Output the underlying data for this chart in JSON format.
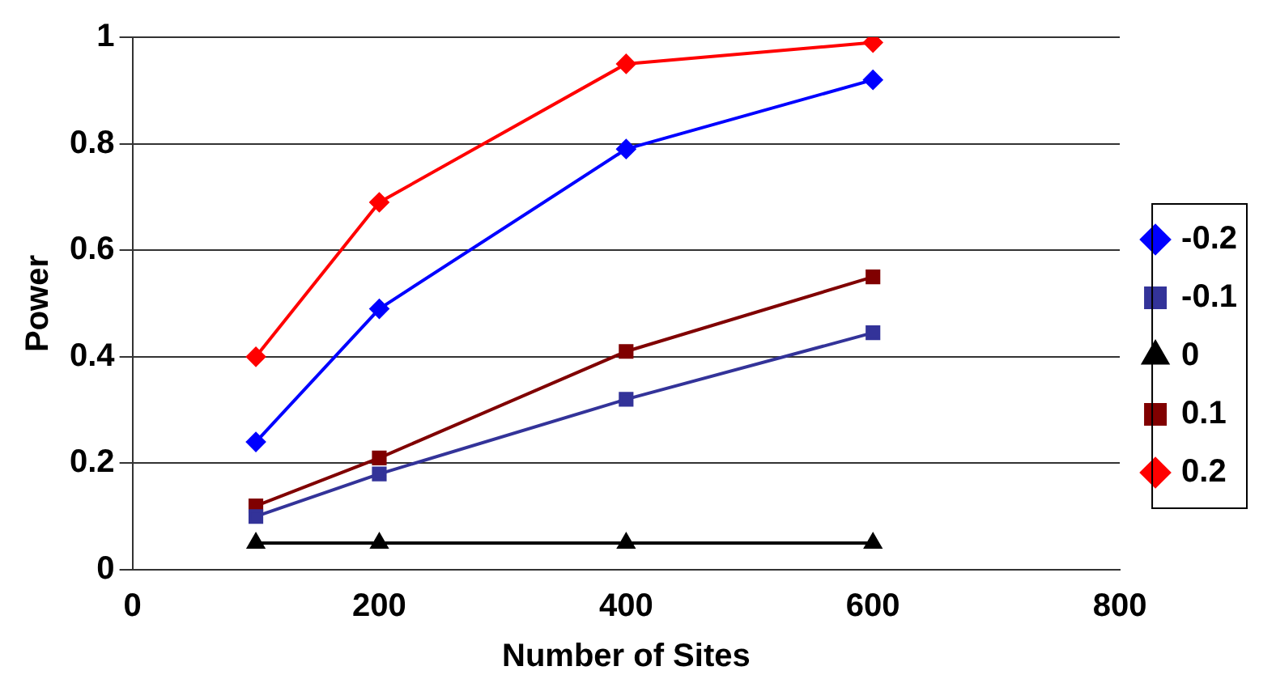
{
  "chart_data": {
    "type": "line",
    "xlabel": "Number of Sites",
    "ylabel": "Power",
    "xlim": [
      0,
      800
    ],
    "xticks": [
      0,
      200,
      400,
      600,
      800
    ],
    "ylim": [
      0,
      1
    ],
    "yticks": [
      0,
      0.2,
      0.4,
      0.6,
      0.8,
      1
    ],
    "grid": "y",
    "legend": "right",
    "series": [
      {
        "name": "-0.2",
        "color": "#0000ff",
        "marker": "diamond",
        "x": [
          100,
          200,
          400,
          600
        ],
        "values": [
          0.24,
          0.49,
          0.79,
          0.92
        ]
      },
      {
        "name": "-0.1",
        "color": "#333399",
        "marker": "square",
        "x": [
          100,
          200,
          400,
          600
        ],
        "values": [
          0.1,
          0.18,
          0.32,
          0.445
        ]
      },
      {
        "name": "0",
        "color": "#000000",
        "marker": "triangle",
        "x": [
          100,
          200,
          400,
          600
        ],
        "values": [
          0.05,
          0.05,
          0.05,
          0.05
        ]
      },
      {
        "name": "0.1",
        "color": "#800000",
        "marker": "square",
        "x": [
          100,
          200,
          400,
          600
        ],
        "values": [
          0.12,
          0.21,
          0.41,
          0.55
        ]
      },
      {
        "name": "0.2",
        "color": "#ff0000",
        "marker": "diamond",
        "x": [
          100,
          200,
          400,
          600
        ],
        "values": [
          0.4,
          0.69,
          0.95,
          0.99
        ]
      }
    ]
  }
}
